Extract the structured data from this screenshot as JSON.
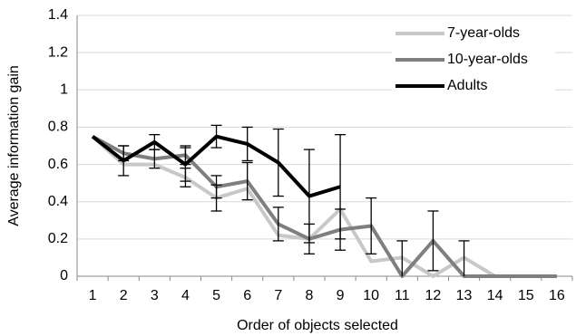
{
  "chart_data": {
    "type": "line",
    "xlabel": "Order of objects selected",
    "ylabel": "Average information gain",
    "categories": [
      "1",
      "2",
      "3",
      "4",
      "5",
      "6",
      "7",
      "8",
      "9",
      "10",
      "11",
      "12",
      "13",
      "14",
      "15",
      "16"
    ],
    "ylim": [
      0,
      1.4
    ],
    "yticks": [
      0,
      {
        "value": 0.2,
        "label": "0.2"
      },
      {
        "value": 0.4,
        "label": "0.4"
      },
      {
        "value": 0.6,
        "label": "0.6"
      },
      {
        "value": 0.8,
        "label": "0.8"
      },
      1,
      {
        "value": 1.2,
        "label": "1.2"
      },
      {
        "value": 1.4,
        "label": "1.4"
      }
    ],
    "grid": true,
    "legend": "top-right",
    "series": [
      {
        "name": "7-year-olds",
        "color": "#c8c8c8",
        "values": [
          0.75,
          0.6,
          0.6,
          0.53,
          0.42,
          0.47,
          0.22,
          0.2,
          0.36,
          0.08,
          0.1,
          0,
          0.1,
          0,
          0,
          0
        ],
        "errors": [
          null,
          null,
          null,
          0.05,
          0.07,
          null,
          null,
          null,
          null,
          null,
          null,
          null,
          null,
          null,
          null,
          null
        ]
      },
      {
        "name": "10-year-olds",
        "color": "#7f7f7f",
        "values": [
          0.75,
          0.66,
          0.63,
          0.65,
          0.48,
          0.51,
          0.28,
          0.2,
          0.25,
          0.27,
          0,
          0.19,
          0,
          0,
          0,
          0
        ],
        "errors": [
          null,
          0.04,
          0.05,
          0.05,
          0.06,
          0.1,
          0.09,
          0.08,
          0.11,
          0.15,
          0.19,
          0.16,
          0.19,
          null,
          null,
          null
        ]
      },
      {
        "name": "Adults",
        "color": "#000000",
        "values": [
          0.75,
          0.62,
          0.72,
          0.6,
          0.75,
          0.71,
          0.61,
          0.43,
          0.48,
          null,
          null,
          null,
          null,
          null,
          null,
          null
        ],
        "errors": [
          null,
          0.08,
          0.04,
          0.09,
          0.06,
          0.09,
          0.18,
          0.25,
          0.28,
          null,
          null,
          null,
          null,
          null,
          null,
          null
        ]
      }
    ]
  }
}
